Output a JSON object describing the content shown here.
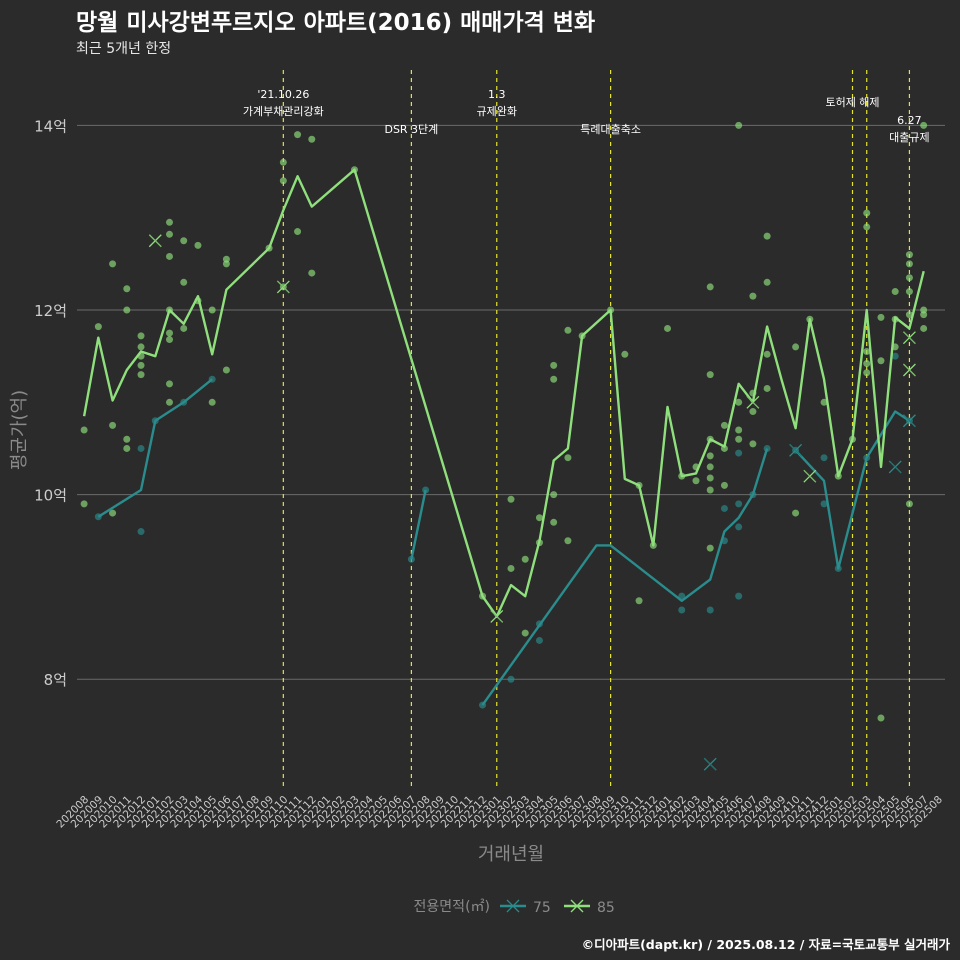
{
  "title": "망월 미사강변푸르지오 아파트(2016) 매매가격 변화",
  "subtitle": "최근 5개년 한정",
  "caption": "©디아파트(dapt.kr) / 2025.08.12 / 자료=국토교통부 실거래가",
  "colors": {
    "background": "#2b2b2b",
    "grid": "#6b6b6b",
    "event_line": "#e4e62e",
    "series_75": "#2a8c8c",
    "series_85": "#8fe07c",
    "axis_text": "#cccccc"
  },
  "chart_data": {
    "type": "line",
    "xlabel": "거래년월",
    "ylabel": "평균가(억)",
    "x_ticks": [
      "202008",
      "202009",
      "202010",
      "202011",
      "202012",
      "202101",
      "202102",
      "202103",
      "202104",
      "202105",
      "202106",
      "202107",
      "202108",
      "202109",
      "202110",
      "202111",
      "202112",
      "202201",
      "202202",
      "202203",
      "202204",
      "202205",
      "202206",
      "202207",
      "202208",
      "202209",
      "202210",
      "202211",
      "202212",
      "202301",
      "202302",
      "202303",
      "202304",
      "202305",
      "202306",
      "202307",
      "202308",
      "202309",
      "202310",
      "202311",
      "202312",
      "202401",
      "202402",
      "202403",
      "202404",
      "202405",
      "202406",
      "202407",
      "202408",
      "202409",
      "202410",
      "202411",
      "202412",
      "202501",
      "202502",
      "202503",
      "202504",
      "202505",
      "202506",
      "202507",
      "202508"
    ],
    "y_ticks": [
      {
        "value": 8,
        "label": "8억"
      },
      {
        "value": 10,
        "label": "10억"
      },
      {
        "value": 12,
        "label": "12억"
      },
      {
        "value": 14,
        "label": "14억"
      }
    ],
    "ylim": [
      6.8,
      14.6
    ],
    "grid": true,
    "legend": {
      "title": "전용면적(㎡)",
      "position": "bottom"
    },
    "events": [
      {
        "x": "202110",
        "label": "'21.10.26\n가계부채관리강화",
        "level": "high"
      },
      {
        "x": "202207",
        "label": "DSR 3단계",
        "level": "low"
      },
      {
        "x": "202301",
        "label": "1.3\n규제완화",
        "level": "high"
      },
      {
        "x": "202309",
        "label": "특례대출축소",
        "level": "low"
      },
      {
        "x": "202502",
        "label": "토허제 해제",
        "level": "mid"
      },
      {
        "x": "202503",
        "label": "",
        "level": "none"
      },
      {
        "x": "202506",
        "label": "6.27\n대출규제",
        "level": "low"
      }
    ],
    "series": [
      {
        "name": "75",
        "color": "#2a8c8c",
        "line": [
          {
            "segment": [
              [
                "202009",
                9.76
              ],
              [
                "202012",
                10.05
              ],
              [
                "202101",
                10.8
              ],
              [
                "202103",
                11.0
              ],
              [
                "202105",
                11.25
              ]
            ]
          },
          {
            "segment": [
              [
                "202207",
                9.3
              ],
              [
                "202208",
                10.05
              ]
            ]
          },
          {
            "segment": [
              [
                "202212",
                7.72
              ],
              [
                "202308",
                9.45
              ],
              [
                "202309",
                9.45
              ],
              [
                "202402",
                8.85
              ],
              [
                "202404",
                9.08
              ],
              [
                "202405",
                9.6
              ],
              [
                "202406",
                9.75
              ],
              [
                "202407",
                10.0
              ],
              [
                "202408",
                10.5
              ]
            ]
          },
          {
            "segment": [
              [
                "202410",
                10.48
              ],
              [
                "202412",
                10.15
              ],
              [
                "202501",
                9.2
              ],
              [
                "202503",
                10.4
              ],
              [
                "202505",
                10.9
              ],
              [
                "202506",
                10.8
              ]
            ]
          }
        ],
        "points": [
          [
            "202009",
            9.76
          ],
          [
            "202012",
            9.6
          ],
          [
            "202012",
            10.5
          ],
          [
            "202101",
            10.8
          ],
          [
            "202103",
            11.0
          ],
          [
            "202105",
            11.25
          ],
          [
            "202207",
            9.3
          ],
          [
            "202208",
            10.05
          ],
          [
            "202212",
            7.72
          ],
          [
            "202302",
            8.0
          ],
          [
            "202304",
            8.6
          ],
          [
            "202304",
            8.42
          ],
          [
            "202402",
            8.75
          ],
          [
            "202402",
            8.9
          ],
          [
            "202404",
            8.75
          ],
          [
            "202405",
            9.5
          ],
          [
            "202405",
            9.85
          ],
          [
            "202406",
            9.65
          ],
          [
            "202406",
            9.9
          ],
          [
            "202406",
            8.9
          ],
          [
            "202406",
            10.45
          ],
          [
            "202407",
            10.0
          ],
          [
            "202408",
            10.5
          ],
          [
            "202410",
            10.48
          ],
          [
            "202412",
            10.4
          ],
          [
            "202412",
            9.9
          ],
          [
            "202501",
            9.2
          ],
          [
            "202503",
            10.4
          ],
          [
            "202505",
            11.5
          ],
          [
            "202506",
            10.8
          ]
        ],
        "cross_points": [
          [
            "202404",
            7.08
          ],
          [
            "202410",
            10.48
          ],
          [
            "202505",
            10.3
          ],
          [
            "202506",
            10.8
          ]
        ]
      },
      {
        "name": "85",
        "color": "#8fe07c",
        "line": [
          {
            "segment": [
              [
                "202008",
                10.85
              ],
              [
                "202009",
                11.7
              ],
              [
                "202010",
                11.02
              ],
              [
                "202011",
                11.35
              ],
              [
                "202012",
                11.55
              ],
              [
                "202101",
                11.5
              ],
              [
                "202102",
                12.0
              ],
              [
                "202103",
                11.85
              ],
              [
                "202104",
                12.15
              ],
              [
                "202105",
                11.52
              ],
              [
                "202106",
                12.22
              ],
              [
                "202109",
                12.67
              ],
              [
                "202110",
                13.08
              ],
              [
                "202111",
                13.45
              ],
              [
                "202112",
                13.12
              ],
              [
                "202203",
                13.52
              ],
              [
                "202212",
                8.9
              ],
              [
                "202301",
                8.68
              ],
              [
                "202302",
                9.02
              ],
              [
                "202303",
                8.9
              ],
              [
                "202304",
                9.5
              ],
              [
                "202305",
                10.37
              ],
              [
                "202306",
                10.5
              ],
              [
                "202307",
                11.72
              ],
              [
                "202309",
                12.0
              ],
              [
                "202310",
                10.17
              ],
              [
                "202311",
                10.1
              ],
              [
                "202312",
                9.45
              ],
              [
                "202401",
                10.95
              ],
              [
                "202402",
                10.2
              ],
              [
                "202403",
                10.23
              ],
              [
                "202404",
                10.6
              ],
              [
                "202405",
                10.52
              ],
              [
                "202406",
                11.2
              ],
              [
                "202407",
                11.0
              ],
              [
                "202408",
                11.82
              ],
              [
                "202409",
                11.25
              ],
              [
                "202410",
                10.72
              ],
              [
                "202411",
                11.9
              ],
              [
                "202412",
                11.25
              ],
              [
                "202501",
                10.2
              ],
              [
                "202502",
                10.6
              ],
              [
                "202503",
                12.0
              ],
              [
                "202504",
                10.3
              ],
              [
                "202505",
                11.92
              ],
              [
                "202506",
                11.8
              ],
              [
                "202507",
                12.42
              ]
            ]
          }
        ],
        "points": [
          [
            "202008",
            10.7
          ],
          [
            "202008",
            9.9
          ],
          [
            "202009",
            11.82
          ],
          [
            "202010",
            12.5
          ],
          [
            "202010",
            10.75
          ],
          [
            "202010",
            9.8
          ],
          [
            "202011",
            12.23
          ],
          [
            "202011",
            12.0
          ],
          [
            "202011",
            10.5
          ],
          [
            "202011",
            10.6
          ],
          [
            "202012",
            11.3
          ],
          [
            "202012",
            11.4
          ],
          [
            "202012",
            11.5
          ],
          [
            "202012",
            11.6
          ],
          [
            "202012",
            11.72
          ],
          [
            "202102",
            12.95
          ],
          [
            "202102",
            12.82
          ],
          [
            "202102",
            12.58
          ],
          [
            "202102",
            12.0
          ],
          [
            "202102",
            11.75
          ],
          [
            "202102",
            11.68
          ],
          [
            "202102",
            11.2
          ],
          [
            "202102",
            11.0
          ],
          [
            "202103",
            12.75
          ],
          [
            "202103",
            12.3
          ],
          [
            "202103",
            11.8
          ],
          [
            "202104",
            12.7
          ],
          [
            "202104",
            12.1
          ],
          [
            "202105",
            12.0
          ],
          [
            "202105",
            11.0
          ],
          [
            "202106",
            12.55
          ],
          [
            "202106",
            12.5
          ],
          [
            "202106",
            11.35
          ],
          [
            "202109",
            12.67
          ],
          [
            "202110",
            13.6
          ],
          [
            "202110",
            13.4
          ],
          [
            "202110",
            12.25
          ],
          [
            "202111",
            13.9
          ],
          [
            "202111",
            12.85
          ],
          [
            "202112",
            13.85
          ],
          [
            "202112",
            12.4
          ],
          [
            "202203",
            13.52
          ],
          [
            "202212",
            8.9
          ],
          [
            "202302",
            9.95
          ],
          [
            "202302",
            9.2
          ],
          [
            "202303",
            9.3
          ],
          [
            "202303",
            8.5
          ],
          [
            "202304",
            9.75
          ],
          [
            "202304",
            9.48
          ],
          [
            "202305",
            10.0
          ],
          [
            "202305",
            9.7
          ],
          [
            "202305",
            11.4
          ],
          [
            "202305",
            11.25
          ],
          [
            "202306",
            11.78
          ],
          [
            "202306",
            10.4
          ],
          [
            "202306",
            9.5
          ],
          [
            "202307",
            11.72
          ],
          [
            "202309",
            12.0
          ],
          [
            "202310",
            11.52
          ],
          [
            "202311",
            10.1
          ],
          [
            "202311",
            8.85
          ],
          [
            "202312",
            9.45
          ],
          [
            "202401",
            11.8
          ],
          [
            "202402",
            10.2
          ],
          [
            "202403",
            10.15
          ],
          [
            "202403",
            10.3
          ],
          [
            "202404",
            12.25
          ],
          [
            "202404",
            11.3
          ],
          [
            "202404",
            10.6
          ],
          [
            "202404",
            10.42
          ],
          [
            "202404",
            10.3
          ],
          [
            "202404",
            10.18
          ],
          [
            "202404",
            10.05
          ],
          [
            "202404",
            9.42
          ],
          [
            "202405",
            10.75
          ],
          [
            "202405",
            10.5
          ],
          [
            "202405",
            10.1
          ],
          [
            "202406",
            14.0
          ],
          [
            "202406",
            11.0
          ],
          [
            "202406",
            10.7
          ],
          [
            "202406",
            10.6
          ],
          [
            "202407",
            12.15
          ],
          [
            "202407",
            11.1
          ],
          [
            "202407",
            10.9
          ],
          [
            "202407",
            10.55
          ],
          [
            "202408",
            12.8
          ],
          [
            "202408",
            12.3
          ],
          [
            "202408",
            11.52
          ],
          [
            "202408",
            11.15
          ],
          [
            "202410",
            11.6
          ],
          [
            "202410",
            9.8
          ],
          [
            "202411",
            11.9
          ],
          [
            "202412",
            11.0
          ],
          [
            "202501",
            10.2
          ],
          [
            "202502",
            10.6
          ],
          [
            "202503",
            13.05
          ],
          [
            "202503",
            12.9
          ],
          [
            "202503",
            11.55
          ],
          [
            "202503",
            11.42
          ],
          [
            "202503",
            11.32
          ],
          [
            "202504",
            11.92
          ],
          [
            "202504",
            11.45
          ],
          [
            "202504",
            7.58
          ],
          [
            "202505",
            12.2
          ],
          [
            "202505",
            11.9
          ],
          [
            "202505",
            11.6
          ],
          [
            "202506",
            12.6
          ],
          [
            "202506",
            12.5
          ],
          [
            "202506",
            12.35
          ],
          [
            "202506",
            12.2
          ],
          [
            "202506",
            11.95
          ],
          [
            "202506",
            9.9
          ],
          [
            "202507",
            14.0
          ],
          [
            "202507",
            12.0
          ],
          [
            "202507",
            11.95
          ],
          [
            "202507",
            11.8
          ]
        ],
        "cross_points": [
          [
            "202101",
            12.75
          ],
          [
            "202110",
            12.25
          ],
          [
            "202301",
            8.68
          ],
          [
            "202407",
            11.0
          ],
          [
            "202411",
            10.2
          ],
          [
            "202506",
            11.7
          ],
          [
            "202506",
            11.35
          ]
        ]
      }
    ]
  }
}
